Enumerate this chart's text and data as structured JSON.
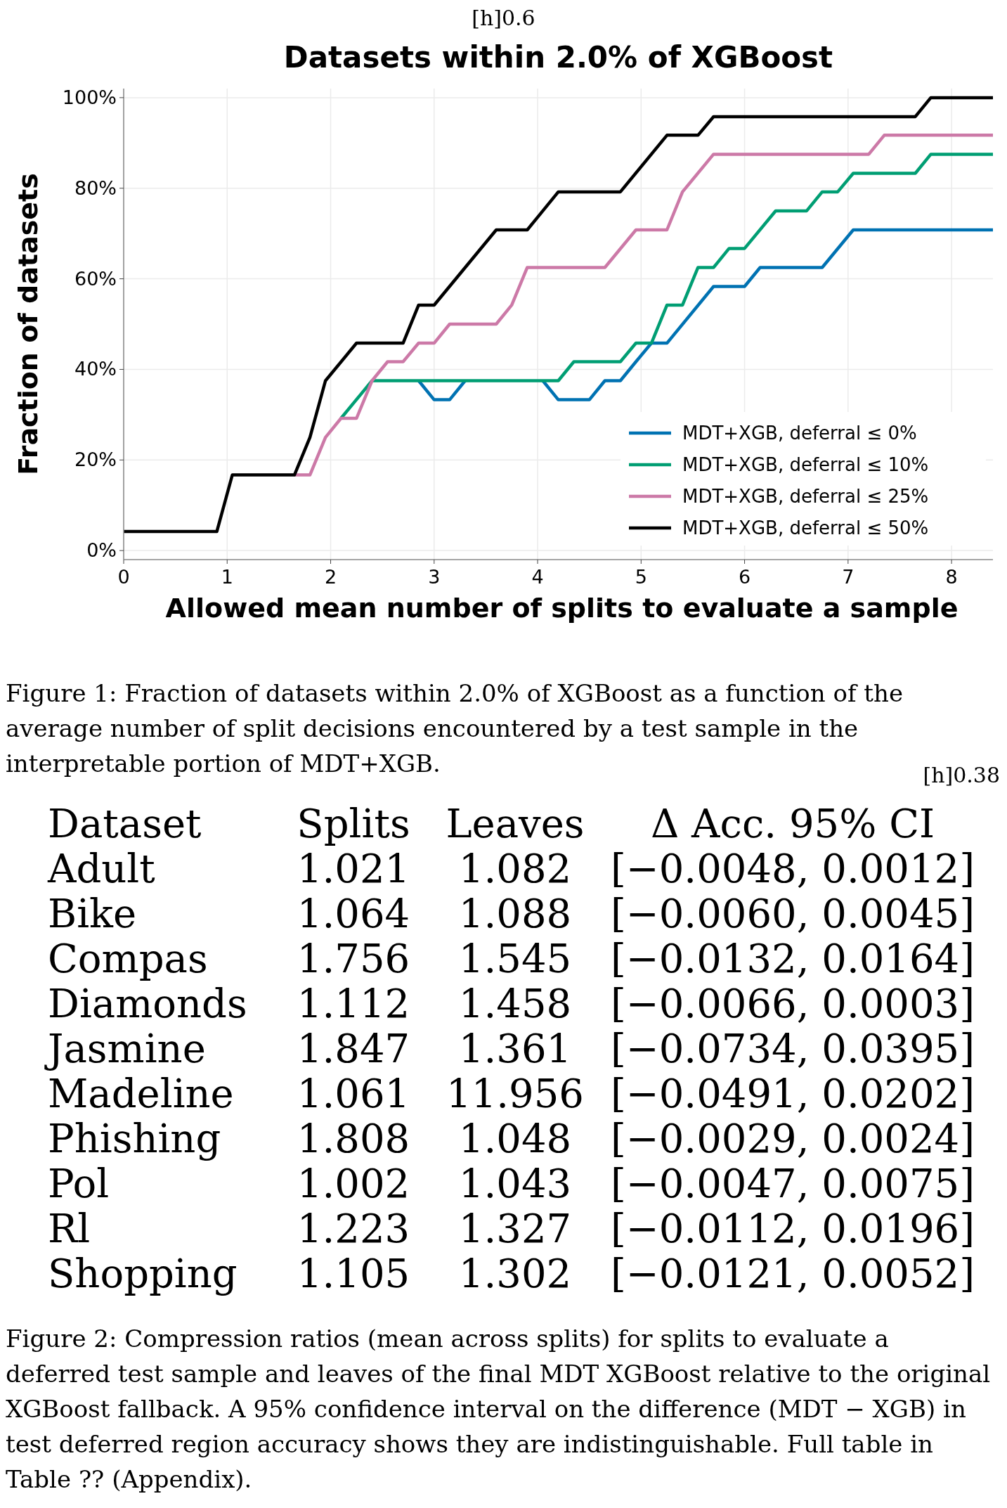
{
  "chart_data": [
    {
      "type": "line",
      "title": "Datasets within 2.0% of XGBoost",
      "xlabel": "Allowed mean number of splits to evaluate a sample",
      "ylabel": "Fraction of datasets",
      "annotations": [
        "[h]0.6",
        "Figure 1: Fraction of datasets within 2.0% of XGBoost as a function of the average number of split decisions encountered by a test sample in the interpretable portion of MDT+XGB."
      ],
      "xlim": [
        0,
        8.4
      ],
      "xticks": [
        0,
        1,
        2,
        3,
        4,
        5,
        6,
        7,
        8
      ],
      "ylim": [
        -2,
        102
      ],
      "yticks": [
        {
          "value": 0,
          "label": "0%"
        },
        {
          "value": 20,
          "label": "20%"
        },
        {
          "value": 40,
          "label": "40%"
        },
        {
          "value": 60,
          "label": "60%"
        },
        {
          "value": 80,
          "label": "80%"
        },
        {
          "value": 100,
          "label": "100%"
        }
      ],
      "grid": true,
      "legend": "bottom right",
      "line_style": "solid",
      "marker": "none",
      "series": [
        {
          "name": "MDT+XGB, deferral ≤ 0%",
          "color": "#0072b2",
          "x": [
            2.85,
            3.0,
            3.15,
            3.3,
            3.6,
            4.05,
            4.2,
            4.5,
            4.65,
            4.8,
            4.95,
            5.1,
            5.25,
            5.7,
            6.0,
            6.15,
            6.75,
            7.05,
            8.4
          ],
          "values": [
            37.5,
            33.3,
            33.3,
            37.5,
            null,
            37.5,
            33.3,
            33.3,
            37.5,
            37.5,
            41.7,
            45.8,
            45.8,
            58.3,
            58.3,
            62.5,
            62.5,
            70.8,
            70.8
          ]
        },
        {
          "name": "MDT+XGB, deferral ≤ 10%",
          "color": "#009e73",
          "x": [
            2.1,
            2.4,
            4.2,
            4.35,
            4.8,
            4.95,
            5.1,
            5.25,
            5.4,
            5.55,
            5.7,
            5.85,
            6.0,
            6.3,
            6.6,
            6.75,
            6.9,
            7.05,
            7.65,
            7.8,
            8.4
          ],
          "values": [
            29.2,
            37.5,
            37.5,
            41.7,
            41.7,
            45.8,
            45.8,
            54.2,
            54.2,
            62.5,
            62.5,
            66.7,
            66.7,
            75,
            75,
            79.2,
            79.2,
            83.3,
            83.3,
            87.5,
            87.5
          ]
        },
        {
          "name": "MDT+XGB, deferral ≤ 25%",
          "color": "#cc79a7",
          "x": [
            1.65,
            1.8,
            1.95,
            2.1,
            2.25,
            2.4,
            2.55,
            2.7,
            2.85,
            3.0,
            3.15,
            3.6,
            3.75,
            3.9,
            4.65,
            4.95,
            5.25,
            5.4,
            5.7,
            7.2,
            7.35,
            8.4
          ],
          "values": [
            16.7,
            16.7,
            25,
            29.2,
            29.2,
            37.5,
            41.7,
            41.7,
            45.8,
            45.8,
            50,
            50,
            54.2,
            62.5,
            62.5,
            70.8,
            70.8,
            79.2,
            87.5,
            87.5,
            91.7,
            91.7
          ]
        },
        {
          "name": "MDT+XGB, deferral ≤ 50%",
          "color": "#000000",
          "x": [
            0,
            0.9,
            1.05,
            1.65,
            1.8,
            1.95,
            2.25,
            2.7,
            2.85,
            3.0,
            3.6,
            3.9,
            4.2,
            4.8,
            5.25,
            5.55,
            5.7,
            7.65,
            7.8,
            8.4
          ],
          "values": [
            4.2,
            4.2,
            16.7,
            16.7,
            25,
            37.5,
            45.8,
            45.8,
            54.2,
            54.2,
            70.8,
            70.8,
            79.2,
            79.2,
            91.7,
            91.7,
            95.8,
            95.8,
            100,
            100
          ]
        }
      ]
    },
    {
      "type": "other",
      "annotations": [
        "[h]0.38",
        "Dataset",
        "Splits",
        "Leaves",
        "Δ Acc. 95% CI",
        "Adult",
        "1.021",
        "1.082",
        "[−0.0048, 0.0012]",
        "Bike",
        "1.064",
        "1.088",
        "[−0.0060, 0.0045]",
        "Compas",
        "1.756",
        "1.545",
        "[−0.0132, 0.0164]",
        "Diamonds",
        "1.112",
        "1.458",
        "[−0.0066, 0.0003]",
        "Jasmine",
        "1.847",
        "1.361",
        "[−0.0734, 0.0395]",
        "Madeline",
        "1.061",
        "11.956",
        "[−0.0491, 0.0202]",
        "Phishing",
        "1.808",
        "1.048",
        "[−0.0029, 0.0024]",
        "Pol",
        "1.002",
        "1.043",
        "[−0.0047, 0.0075]",
        "Rl",
        "1.223",
        "1.327",
        "[−0.0112, 0.0196]",
        "Shopping",
        "1.105",
        "1.302",
        "[−0.0121, 0.0052]",
        "Figure 2: Compression ratios (mean across splits) for splits to evaluate a deferred test sample and leaves of the final MDT XGBoost relative to the original XGBoost fallback. A 95% confidence interval on the difference (MDT − XGB) in test deferred region accuracy shows they are indistinguishable. Full table in Table ?? (Appendix)."
      ]
    }
  ]
}
